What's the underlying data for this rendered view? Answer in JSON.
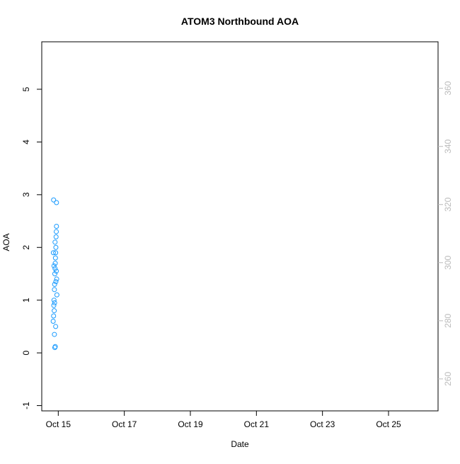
{
  "chart_data": {
    "type": "scatter",
    "title": "ATOM3 Northbound AOA",
    "xlabel": "Date",
    "ylabel": "AOA",
    "y2label": "",
    "xlim": [
      "2012-10-14T12:00",
      "2012-10-26T12:00"
    ],
    "ylim": [
      -1.1,
      5.9
    ],
    "y2lim": [
      249,
      376
    ],
    "x_ticks": [
      {
        "date": "2012-10-15",
        "label": "Oct 15"
      },
      {
        "date": "2012-10-17",
        "label": "Oct 17"
      },
      {
        "date": "2012-10-19",
        "label": "Oct 19"
      },
      {
        "date": "2012-10-21",
        "label": "Oct 21"
      },
      {
        "date": "2012-10-23",
        "label": "Oct 23"
      },
      {
        "date": "2012-10-25",
        "label": "Oct 25"
      }
    ],
    "y_ticks": [
      -1,
      0,
      1,
      2,
      3,
      4,
      5
    ],
    "y_tick_labels": [
      "-1",
      "0",
      "1",
      "2",
      "3",
      "4",
      "5"
    ],
    "y2_ticks": [
      260,
      280,
      300,
      320,
      340,
      360
    ],
    "y2_tick_labels": [
      "260",
      "280",
      "300",
      "320",
      "340",
      "360"
    ],
    "colors": {
      "day1": "#1a9bff",
      "day2": "#0055ff",
      "day3": "#4a20e0",
      "day4": "#8a18e8",
      "day5": "#e020e0",
      "day6": "#ff10c8",
      "secondary_line": "#c8c8c8",
      "secondary_axis_text": "#bbbbbb"
    },
    "series": [
      {
        "color_key": "day1",
        "x_dates": [
          "2012-10-14T20:00",
          "2012-10-14T21:30",
          "2012-10-14T23:00"
        ],
        "y_summary": {
          "center": 1.6,
          "spread": 0.55,
          "min": 0.1,
          "max": 2.9
        },
        "points": [
          [
            0.1,
            0.6
          ],
          [
            0.2,
            0.7
          ],
          [
            0.25,
            0.9
          ],
          [
            0.3,
            1.0
          ],
          [
            0.35,
            0.8
          ],
          [
            0.4,
            1.2
          ],
          [
            0.45,
            1.3
          ],
          [
            0.5,
            1.5
          ],
          [
            0.55,
            1.6
          ],
          [
            0.6,
            1.7
          ],
          [
            0.65,
            1.8
          ],
          [
            0.7,
            1.9
          ],
          [
            0.75,
            2.0
          ],
          [
            0.8,
            2.2
          ],
          [
            0.85,
            2.3
          ],
          [
            0.9,
            2.4
          ],
          [
            0.95,
            1.4
          ],
          [
            1.0,
            1.1
          ],
          [
            0.2,
            2.9
          ],
          [
            0.9,
            2.85
          ],
          [
            0.5,
            0.1
          ],
          [
            0.6,
            0.12
          ],
          [
            0.4,
            0.35
          ],
          [
            0.7,
            0.5
          ],
          [
            0.3,
            1.65
          ],
          [
            0.55,
            2.1
          ],
          [
            0.85,
            1.55
          ],
          [
            0.15,
            1.9
          ],
          [
            0.45,
            0.95
          ],
          [
            0.75,
            1.35
          ]
        ]
      }
    ]
  }
}
